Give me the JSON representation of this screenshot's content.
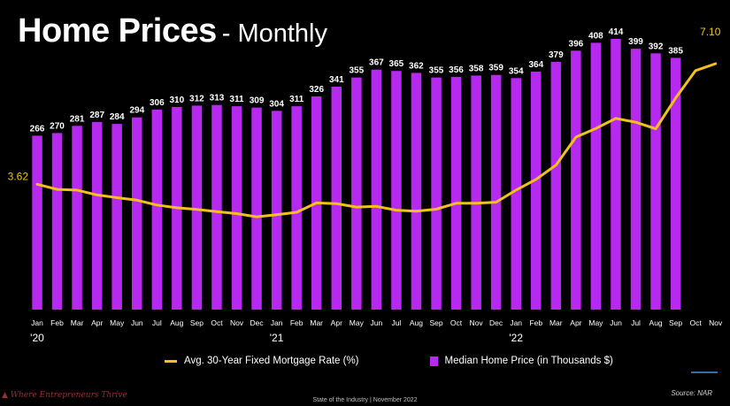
{
  "header": {
    "title_bold": "Home Prices",
    "title_rest": "- Monthly"
  },
  "legend": {
    "line_label": "Avg. 30-Year Fixed Mortgage Rate (%)",
    "bar_label": "Median Home Price (in Thousands $)"
  },
  "source": "Source: NAR",
  "footer": "State of the Industry | November 2022",
  "logo_text": "Where Entrepreneurs Thrive",
  "colors": {
    "bar": "#b629ee",
    "line": "#f2c21b",
    "background": "#000000"
  },
  "chart_data": {
    "type": "bar",
    "title": "Home Prices - Monthly",
    "categories": [
      "Jan",
      "Feb",
      "Mar",
      "Apr",
      "May",
      "Jun",
      "Jul",
      "Aug",
      "Sep",
      "Oct",
      "Nov",
      "Dec",
      "Jan",
      "Feb",
      "Mar",
      "Apr",
      "May",
      "Jun",
      "Jul",
      "Aug",
      "Sep",
      "Oct",
      "Nov",
      "Dec",
      "Jan",
      "Feb",
      "Mar",
      "Apr",
      "May",
      "Jun",
      "Jul",
      "Aug",
      "Sep",
      "Oct",
      "Nov"
    ],
    "year_labels": [
      {
        "index": 0,
        "label": "'20"
      },
      {
        "index": 12,
        "label": "'21"
      },
      {
        "index": 24,
        "label": "'22"
      }
    ],
    "series": [
      {
        "name": "Median Home Price (in Thousands $)",
        "type": "bar",
        "values": [
          266,
          270,
          281,
          287,
          284,
          294,
          306,
          310,
          312,
          313,
          311,
          309,
          304,
          311,
          326,
          341,
          355,
          367,
          365,
          362,
          355,
          356,
          358,
          359,
          354,
          364,
          379,
          396,
          408,
          414,
          399,
          392,
          385,
          null,
          null
        ]
      },
      {
        "name": "Avg. 30-Year Fixed Mortgage Rate (%)",
        "type": "line",
        "values": [
          3.62,
          3.47,
          3.45,
          3.31,
          3.23,
          3.16,
          3.02,
          2.94,
          2.89,
          2.83,
          2.77,
          2.68,
          2.74,
          2.81,
          3.08,
          3.06,
          2.96,
          2.98,
          2.87,
          2.84,
          2.9,
          3.07,
          3.07,
          3.1,
          3.45,
          3.76,
          4.17,
          4.98,
          5.23,
          5.52,
          5.41,
          5.22,
          6.11,
          6.9,
          7.1
        ]
      }
    ],
    "point_labels": [
      {
        "series": 1,
        "index": 0,
        "text": "3.62"
      },
      {
        "series": 1,
        "index": 34,
        "text": "7.10"
      }
    ],
    "bar_ylim": [
      0,
      440
    ],
    "line_ylim": [
      0,
      7.1
    ]
  }
}
